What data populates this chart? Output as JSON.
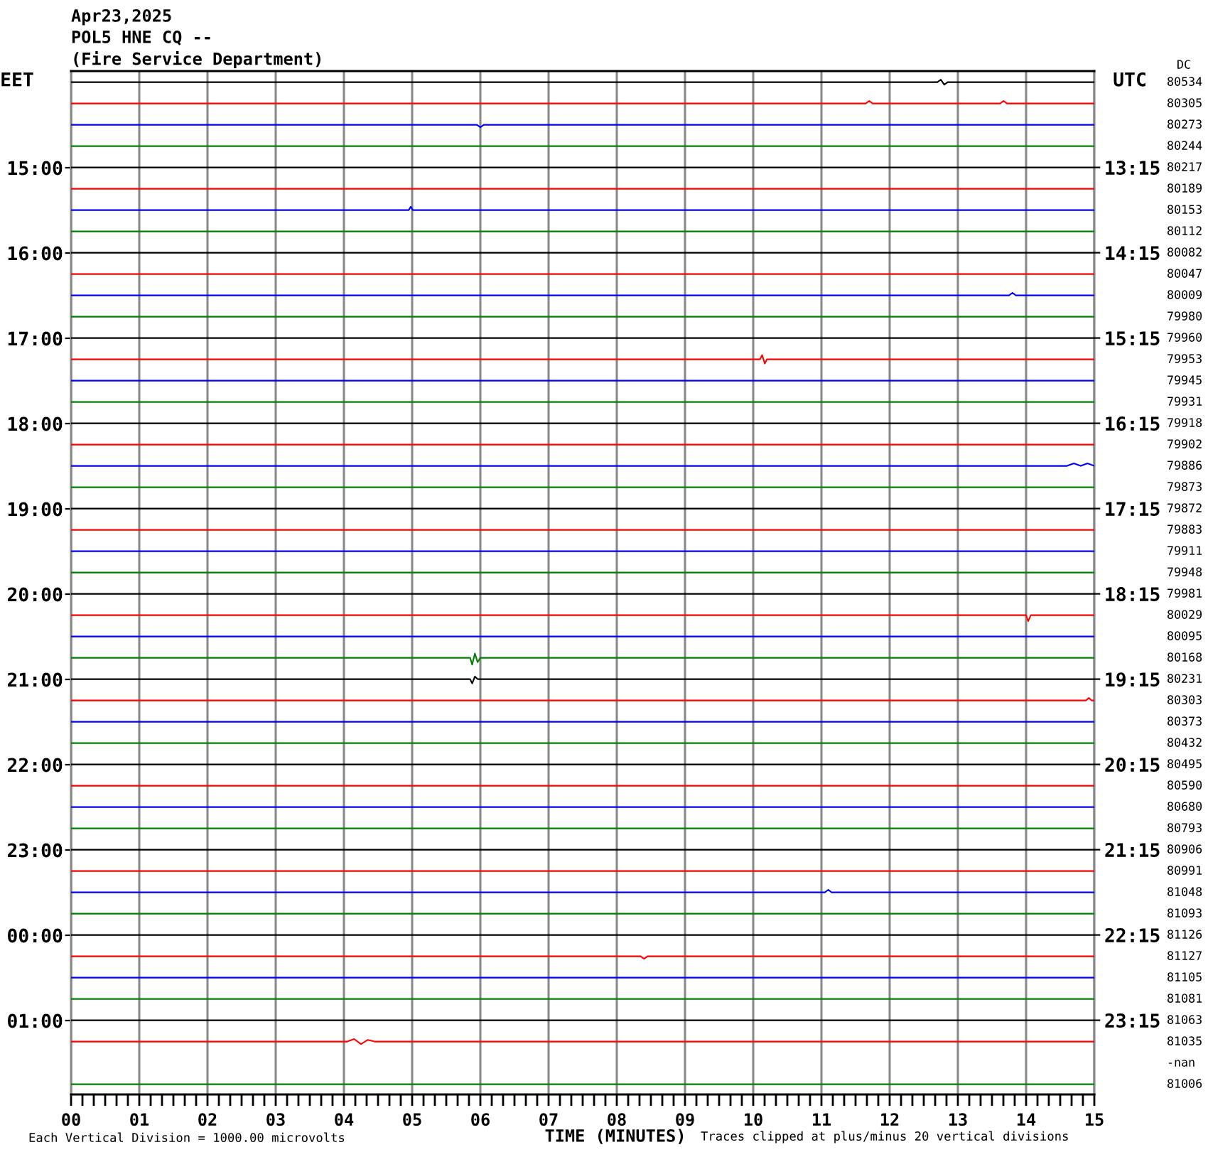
{
  "chart_data": {
    "type": "line",
    "title": "Apr23,2025",
    "subtitle": "POL5 HNE CQ --",
    "annotations": [
      "(Fire Service Department)",
      "Each Vertical Division = 1000.00 microvolts",
      "Traces clipped at plus/minus 20 vertical divisions",
      "DC",
      "80534",
      "80305",
      "80273",
      "80244",
      "80217",
      "80189",
      "80153",
      "80112",
      "80082",
      "80047",
      "80009",
      "79980",
      "79960",
      "79953",
      "79945",
      "79931",
      "79918",
      "79902",
      "79886",
      "79873",
      "79872",
      "79883",
      "79911",
      "79948",
      "79981",
      "80029",
      "80095",
      "80168",
      "80231",
      "80303",
      "80373",
      "80432",
      "80495",
      "80590",
      "80680",
      "80793",
      "80906",
      "80991",
      "81048",
      "81093",
      "81126",
      "81127",
      "81105",
      "81081",
      "81063",
      "81035",
      "-nan",
      "81006"
    ],
    "xlabel": "TIME (MINUTES)",
    "ylabel": "EET",
    "y2label": "UTC",
    "xlim": [
      0,
      15
    ],
    "xticks": [
      {
        "value": 0,
        "label": "00"
      },
      {
        "value": 0.167,
        "label": null
      },
      {
        "value": 0.333,
        "label": null
      },
      {
        "value": 0.5,
        "label": null
      },
      {
        "value": 0.667,
        "label": null
      },
      {
        "value": 0.833,
        "label": null
      },
      {
        "value": 1,
        "label": "01"
      },
      {
        "value": 1.167,
        "label": null
      },
      {
        "value": 1.333,
        "label": null
      },
      {
        "value": 1.5,
        "label": null
      },
      {
        "value": 1.667,
        "label": null
      },
      {
        "value": 1.833,
        "label": null
      },
      {
        "value": 2,
        "label": "02"
      },
      {
        "value": 2.167,
        "label": null
      },
      {
        "value": 2.333,
        "label": null
      },
      {
        "value": 2.5,
        "label": null
      },
      {
        "value": 2.667,
        "label": null
      },
      {
        "value": 2.833,
        "label": null
      },
      {
        "value": 3,
        "label": "03"
      },
      {
        "value": 3.167,
        "label": null
      },
      {
        "value": 3.333,
        "label": null
      },
      {
        "value": 3.5,
        "label": null
      },
      {
        "value": 3.667,
        "label": null
      },
      {
        "value": 3.833,
        "label": null
      },
      {
        "value": 4,
        "label": "04"
      },
      {
        "value": 4.167,
        "label": null
      },
      {
        "value": 4.333,
        "label": null
      },
      {
        "value": 4.5,
        "label": null
      },
      {
        "value": 4.667,
        "label": null
      },
      {
        "value": 4.833,
        "label": null
      },
      {
        "value": 5,
        "label": "05"
      },
      {
        "value": 5.167,
        "label": null
      },
      {
        "value": 5.333,
        "label": null
      },
      {
        "value": 5.5,
        "label": null
      },
      {
        "value": 5.667,
        "label": null
      },
      {
        "value": 5.833,
        "label": null
      },
      {
        "value": 6,
        "label": "06"
      },
      {
        "value": 6.167,
        "label": null
      },
      {
        "value": 6.333,
        "label": null
      },
      {
        "value": 6.5,
        "label": null
      },
      {
        "value": 6.667,
        "label": null
      },
      {
        "value": 6.833,
        "label": null
      },
      {
        "value": 7,
        "label": "07"
      },
      {
        "value": 7.167,
        "label": null
      },
      {
        "value": 7.333,
        "label": null
      },
      {
        "value": 7.5,
        "label": null
      },
      {
        "value": 7.667,
        "label": null
      },
      {
        "value": 7.833,
        "label": null
      },
      {
        "value": 8,
        "label": "08"
      },
      {
        "value": 8.167,
        "label": null
      },
      {
        "value": 8.333,
        "label": null
      },
      {
        "value": 8.5,
        "label": null
      },
      {
        "value": 8.667,
        "label": null
      },
      {
        "value": 8.833,
        "label": null
      },
      {
        "value": 9,
        "label": "09"
      },
      {
        "value": 9.167,
        "label": null
      },
      {
        "value": 9.333,
        "label": null
      },
      {
        "value": 9.5,
        "label": null
      },
      {
        "value": 9.667,
        "label": null
      },
      {
        "value": 9.833,
        "label": null
      },
      {
        "value": 10,
        "label": "10"
      },
      {
        "value": 10.167,
        "label": null
      },
      {
        "value": 10.333,
        "label": null
      },
      {
        "value": 10.5,
        "label": null
      },
      {
        "value": 10.667,
        "label": null
      },
      {
        "value": 10.833,
        "label": null
      },
      {
        "value": 11,
        "label": "11"
      },
      {
        "value": 11.167,
        "label": null
      },
      {
        "value": 11.333,
        "label": null
      },
      {
        "value": 11.5,
        "label": null
      },
      {
        "value": 11.667,
        "label": null
      },
      {
        "value": 11.833,
        "label": null
      },
      {
        "value": 12,
        "label": "12"
      },
      {
        "value": 12.167,
        "label": null
      },
      {
        "value": 12.333,
        "label": null
      },
      {
        "value": 12.5,
        "label": null
      },
      {
        "value": 12.667,
        "label": null
      },
      {
        "value": 12.833,
        "label": null
      },
      {
        "value": 13,
        "label": "13"
      },
      {
        "value": 13.167,
        "label": null
      },
      {
        "value": 13.333,
        "label": null
      },
      {
        "value": 13.5,
        "label": null
      },
      {
        "value": 13.667,
        "label": null
      },
      {
        "value": 13.833,
        "label": null
      },
      {
        "value": 14,
        "label": "14"
      },
      {
        "value": 14.167,
        "label": null
      },
      {
        "value": 14.333,
        "label": null
      },
      {
        "value": 14.5,
        "label": null
      },
      {
        "value": 14.667,
        "label": null
      },
      {
        "value": 14.833,
        "label": null
      },
      {
        "value": 15,
        "label": "15"
      }
    ],
    "ylim": [
      "2025-04-24T01:52",
      "2025-04-23T13:52"
    ],
    "yticks": [
      {
        "value": "2025-04-23T15:00",
        "label": "15:00"
      },
      {
        "value": "2025-04-23T16:00",
        "label": "16:00"
      },
      {
        "value": "2025-04-23T17:00",
        "label": "17:00"
      },
      {
        "value": "2025-04-23T18:00",
        "label": "18:00"
      },
      {
        "value": "2025-04-23T19:00",
        "label": "19:00"
      },
      {
        "value": "2025-04-23T20:00",
        "label": "20:00"
      },
      {
        "value": "2025-04-23T21:00",
        "label": "21:00"
      },
      {
        "value": "2025-04-23T22:00",
        "label": "22:00"
      },
      {
        "value": "2025-04-23T23:00",
        "label": "23:00"
      },
      {
        "value": "2025-04-24T00:00",
        "label": "00:00"
      },
      {
        "value": "2025-04-24T01:00",
        "label": "01:00"
      }
    ],
    "y2lim": [
      24.12,
      12.12
    ],
    "y2ticks": [
      {
        "value": 13.25,
        "label": "13:15"
      },
      {
        "value": 14.25,
        "label": "14:15"
      },
      {
        "value": 15.25,
        "label": "15:15"
      },
      {
        "value": 16.25,
        "label": "16:15"
      },
      {
        "value": 17.25,
        "label": "17:15"
      },
      {
        "value": 18.25,
        "label": "18:15"
      },
      {
        "value": 19.25,
        "label": "19:15"
      },
      {
        "value": 20.25,
        "label": "20:15"
      },
      {
        "value": 21.25,
        "label": "21:15"
      },
      {
        "value": 22.25,
        "label": "22:15"
      },
      {
        "value": 23.25,
        "label": "23:15"
      }
    ],
    "grid": "x",
    "series": [
      {
        "axis": "y2",
        "color": "#000000",
        "x": [
          0,
          12.7,
          12.75,
          12.8,
          12.85,
          15
        ],
        "values": [
          12.25,
          12.25,
          12.22,
          12.28,
          12.25,
          12.25
        ]
      },
      {
        "axis": "y2",
        "color": "#ff0000",
        "x": [
          0,
          11.65,
          11.7,
          11.75,
          13.62,
          13.67,
          13.72,
          15
        ],
        "values": [
          12.5,
          12.5,
          12.47,
          12.5,
          12.5,
          12.47,
          12.5,
          12.5
        ]
      },
      {
        "axis": "y2",
        "color": "#0000ff",
        "x": [
          0,
          5.95,
          6,
          6.05,
          15
        ],
        "values": [
          12.75,
          12.75,
          12.78,
          12.75,
          12.75
        ]
      },
      {
        "axis": "y2",
        "color": "#008000",
        "x": [
          0,
          15
        ],
        "values": [
          13,
          13
        ]
      },
      {
        "axis": "y2",
        "color": "#000000",
        "x": [
          0,
          15
        ],
        "values": [
          13.25,
          13.25
        ]
      },
      {
        "axis": "y2",
        "color": "#ff0000",
        "x": [
          0,
          15
        ],
        "values": [
          13.5,
          13.5
        ]
      },
      {
        "axis": "y2",
        "color": "#0000ff",
        "x": [
          0,
          4.95,
          4.98,
          5.01,
          15
        ],
        "values": [
          13.75,
          13.75,
          13.71,
          13.75,
          13.75
        ]
      },
      {
        "axis": "y2",
        "color": "#008000",
        "x": [
          0,
          15
        ],
        "values": [
          14,
          14
        ]
      },
      {
        "axis": "y2",
        "color": "#000000",
        "x": [
          0,
          15
        ],
        "values": [
          14.25,
          14.25
        ]
      },
      {
        "axis": "y2",
        "color": "#ff0000",
        "x": [
          0,
          15
        ],
        "values": [
          14.5,
          14.5
        ]
      },
      {
        "axis": "y2",
        "color": "#0000ff",
        "x": [
          0,
          13.75,
          13.8,
          13.85,
          15
        ],
        "values": [
          14.75,
          14.75,
          14.72,
          14.75,
          14.75
        ]
      },
      {
        "axis": "y2",
        "color": "#008000",
        "x": [
          0,
          15
        ],
        "values": [
          15,
          15
        ]
      },
      {
        "axis": "y2",
        "color": "#000000",
        "x": [
          0,
          15
        ],
        "values": [
          15.25,
          15.25
        ]
      },
      {
        "axis": "y2",
        "color": "#ff0000",
        "x": [
          0,
          10.1,
          10.13,
          10.17,
          10.2,
          15
        ],
        "values": [
          15.5,
          15.5,
          15.45,
          15.55,
          15.5,
          15.5
        ]
      },
      {
        "axis": "y2",
        "color": "#0000ff",
        "x": [
          0,
          15
        ],
        "values": [
          15.75,
          15.75
        ]
      },
      {
        "axis": "y2",
        "color": "#008000",
        "x": [
          0,
          15
        ],
        "values": [
          16,
          16
        ]
      },
      {
        "axis": "y2",
        "color": "#000000",
        "x": [
          0,
          15
        ],
        "values": [
          16.25,
          16.25
        ]
      },
      {
        "axis": "y2",
        "color": "#ff0000",
        "x": [
          0,
          15
        ],
        "values": [
          16.5,
          16.5
        ]
      },
      {
        "axis": "y2",
        "color": "#0000ff",
        "x": [
          0,
          14.6,
          14.7,
          14.8,
          14.9,
          15
        ],
        "values": [
          16.75,
          16.75,
          16.72,
          16.75,
          16.72,
          16.75
        ]
      },
      {
        "axis": "y2",
        "color": "#008000",
        "x": [
          0,
          15
        ],
        "values": [
          17,
          17
        ]
      },
      {
        "axis": "y2",
        "color": "#000000",
        "x": [
          0,
          15
        ],
        "values": [
          17.25,
          17.25
        ]
      },
      {
        "axis": "y2",
        "color": "#ff0000",
        "x": [
          0,
          15
        ],
        "values": [
          17.5,
          17.5
        ]
      },
      {
        "axis": "y2",
        "color": "#0000ff",
        "x": [
          0,
          15
        ],
        "values": [
          17.75,
          17.75
        ]
      },
      {
        "axis": "y2",
        "color": "#008000",
        "x": [
          0,
          15
        ],
        "values": [
          18,
          18
        ]
      },
      {
        "axis": "y2",
        "color": "#000000",
        "x": [
          0,
          15
        ],
        "values": [
          18.25,
          18.25
        ]
      },
      {
        "axis": "y2",
        "color": "#ff0000",
        "x": [
          0,
          14,
          14.03,
          14.07,
          15
        ],
        "values": [
          18.5,
          18.5,
          18.57,
          18.5,
          18.5
        ]
      },
      {
        "axis": "y2",
        "color": "#0000ff",
        "x": [
          0,
          15
        ],
        "values": [
          18.75,
          18.75
        ]
      },
      {
        "axis": "y2",
        "color": "#008000",
        "x": [
          0,
          5.85,
          5.88,
          5.92,
          5.96,
          6,
          15
        ],
        "values": [
          19,
          19,
          19.08,
          18.95,
          19.05,
          19,
          19
        ]
      },
      {
        "axis": "y2",
        "color": "#000000",
        "x": [
          0,
          5.85,
          5.88,
          5.92,
          5.96,
          15
        ],
        "values": [
          19.25,
          19.25,
          19.3,
          19.22,
          19.25,
          19.25
        ]
      },
      {
        "axis": "y2",
        "color": "#ff0000",
        "x": [
          0,
          14.88,
          14.92,
          14.96,
          15
        ],
        "values": [
          19.5,
          19.5,
          19.47,
          19.5,
          19.5
        ]
      },
      {
        "axis": "y2",
        "color": "#0000ff",
        "x": [
          0,
          15
        ],
        "values": [
          19.75,
          19.75
        ]
      },
      {
        "axis": "y2",
        "color": "#008000",
        "x": [
          0,
          15
        ],
        "values": [
          20,
          20
        ]
      },
      {
        "axis": "y2",
        "color": "#000000",
        "x": [
          0,
          15
        ],
        "values": [
          20.25,
          20.25
        ]
      },
      {
        "axis": "y2",
        "color": "#ff0000",
        "x": [
          0,
          15
        ],
        "values": [
          20.5,
          20.5
        ]
      },
      {
        "axis": "y2",
        "color": "#0000ff",
        "x": [
          0,
          15
        ],
        "values": [
          20.75,
          20.75
        ]
      },
      {
        "axis": "y2",
        "color": "#008000",
        "x": [
          0,
          15
        ],
        "values": [
          21,
          21
        ]
      },
      {
        "axis": "y2",
        "color": "#000000",
        "x": [
          0,
          15
        ],
        "values": [
          21.25,
          21.25
        ]
      },
      {
        "axis": "y2",
        "color": "#ff0000",
        "x": [
          0,
          15
        ],
        "values": [
          21.5,
          21.5
        ]
      },
      {
        "axis": "y2",
        "color": "#0000ff",
        "x": [
          0,
          11.05,
          11.1,
          11.15,
          15
        ],
        "values": [
          21.75,
          21.75,
          21.72,
          21.75,
          21.75
        ]
      },
      {
        "axis": "y2",
        "color": "#008000",
        "x": [
          0,
          15
        ],
        "values": [
          22,
          22
        ]
      },
      {
        "axis": "y2",
        "color": "#000000",
        "x": [
          0,
          15
        ],
        "values": [
          22.25,
          22.25
        ]
      },
      {
        "axis": "y2",
        "color": "#ff0000",
        "x": [
          0,
          8.35,
          8.4,
          8.45,
          15
        ],
        "values": [
          22.5,
          22.5,
          22.53,
          22.5,
          22.5
        ]
      },
      {
        "axis": "y2",
        "color": "#0000ff",
        "x": [
          0,
          15
        ],
        "values": [
          22.75,
          22.75
        ]
      },
      {
        "axis": "y2",
        "color": "#008000",
        "x": [
          0,
          15
        ],
        "values": [
          23,
          23
        ]
      },
      {
        "axis": "y2",
        "color": "#000000",
        "x": [
          0,
          15
        ],
        "values": [
          23.25,
          23.25
        ]
      },
      {
        "axis": "y2",
        "color": "#ff0000",
        "x": [
          0,
          4.05,
          4.15,
          4.25,
          4.35,
          4.45,
          15
        ],
        "values": [
          23.5,
          23.5,
          23.47,
          23.53,
          23.48,
          23.5,
          23.5
        ]
      },
      {
        "axis": "y2",
        "color": "#008000",
        "x": [
          0,
          15
        ],
        "values": [
          24,
          24
        ]
      }
    ]
  }
}
